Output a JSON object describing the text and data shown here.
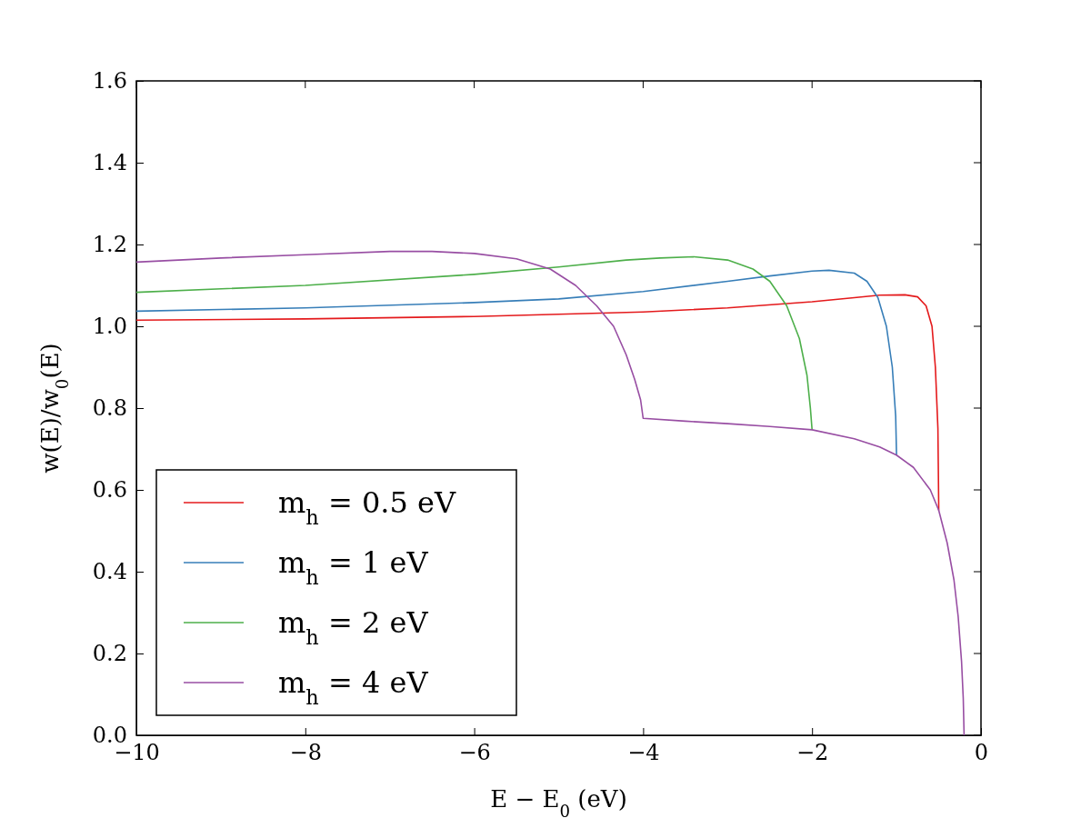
{
  "chart_data": {
    "type": "line",
    "xlabel": "E − E$_{0}$ (eV)",
    "ylabel": "w(E)/w$_{0}$(E)",
    "xlim": [
      -10,
      0
    ],
    "xticks": [
      {
        "value": -10,
        "label": "−10"
      },
      {
        "value": -8,
        "label": "−8"
      },
      {
        "value": -6,
        "label": "−6"
      },
      {
        "value": -4,
        "label": "−4"
      },
      {
        "value": -2,
        "label": "−2"
      },
      0
    ],
    "ylim": [
      0,
      1.6
    ],
    "yticks": [
      {
        "value": 0,
        "label": "0.0"
      },
      {
        "value": 0.2,
        "label": "0.2"
      },
      {
        "value": 0.4,
        "label": "0.4"
      },
      {
        "value": 0.6,
        "label": "0.6"
      },
      {
        "value": 0.8,
        "label": "0.8"
      },
      {
        "value": 1,
        "label": "1.0"
      },
      {
        "value": 1.2,
        "label": "1.2"
      },
      {
        "value": 1.4,
        "label": "1.4"
      },
      {
        "value": 1.6,
        "label": "1.6"
      }
    ],
    "grid": false,
    "legend": "bottom left",
    "marker": "none",
    "line_style": "solid",
    "series": [
      {
        "name": "m$_{h}$ = 0.5 eV",
        "color": "#e41a1c",
        "x": [
          -10,
          -8,
          -6,
          -4,
          -3,
          -2,
          -1.5,
          -1.2,
          -0.9,
          -0.75,
          -0.65,
          -0.58,
          -0.54,
          -0.51,
          -0.5
        ],
        "values": [
          1.015,
          1.018,
          1.024,
          1.035,
          1.045,
          1.06,
          1.07,
          1.076,
          1.077,
          1.072,
          1.05,
          1.0,
          0.9,
          0.75,
          0.55
        ]
      },
      {
        "name": "m$_{h}$ = 1 eV",
        "color": "#377eb8",
        "x": [
          -10,
          -8,
          -6,
          -5,
          -4,
          -3,
          -2.5,
          -2,
          -1.8,
          -1.5,
          -1.35,
          -1.22,
          -1.12,
          -1.05,
          -1.01,
          -1
        ],
        "values": [
          1.037,
          1.045,
          1.058,
          1.067,
          1.085,
          1.11,
          1.123,
          1.135,
          1.137,
          1.13,
          1.11,
          1.07,
          1.0,
          0.9,
          0.78,
          0.685
        ]
      },
      {
        "name": "m$_{h}$ = 2 eV",
        "color": "#4daf4a",
        "x": [
          -10,
          -8,
          -6,
          -5,
          -4.2,
          -3.8,
          -3.4,
          -3,
          -2.7,
          -2.5,
          -2.3,
          -2.15,
          -2.06,
          -2.02,
          -2
        ],
        "values": [
          1.083,
          1.1,
          1.127,
          1.145,
          1.162,
          1.167,
          1.17,
          1.162,
          1.14,
          1.11,
          1.05,
          0.97,
          0.88,
          0.8,
          0.747
        ]
      },
      {
        "name": "m$_{h}$ = 4 eV",
        "color": "#984ea3",
        "x": [
          -10,
          -9,
          -8,
          -7,
          -6.5,
          -6,
          -5.5,
          -5.1,
          -4.8,
          -4.55,
          -4.35,
          -4.2,
          -4.1,
          -4.03,
          -4.01,
          -4,
          -3.5,
          -3,
          -2.5,
          -2,
          -1.5,
          -1.2,
          -1,
          -0.8,
          -0.6,
          -0.5,
          -0.4,
          -0.32,
          -0.27,
          -0.23,
          -0.21,
          -0.2
        ],
        "values": [
          1.157,
          1.167,
          1.175,
          1.183,
          1.183,
          1.178,
          1.165,
          1.14,
          1.1,
          1.05,
          1.0,
          0.93,
          0.87,
          0.82,
          0.79,
          0.775,
          0.768,
          0.762,
          0.755,
          0.747,
          0.725,
          0.705,
          0.685,
          0.655,
          0.6,
          0.55,
          0.47,
          0.38,
          0.29,
          0.18,
          0.09,
          0
        ]
      }
    ]
  }
}
